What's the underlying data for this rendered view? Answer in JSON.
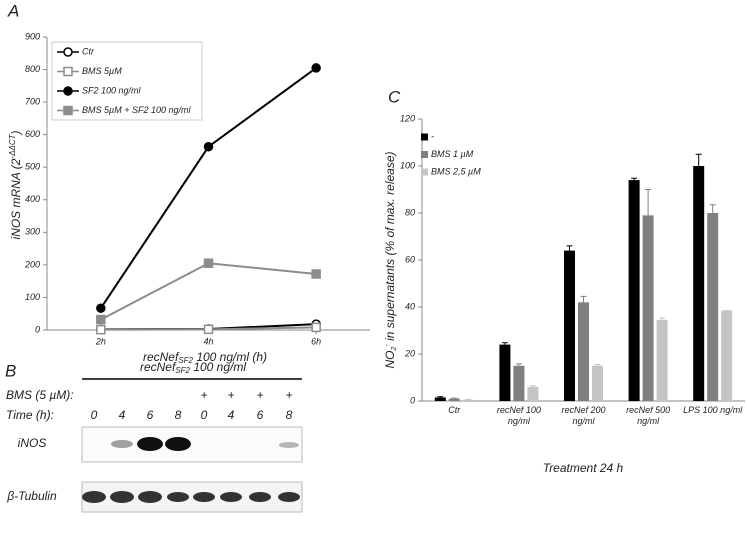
{
  "chart_data": [
    {
      "type": "line",
      "panel": "A",
      "xlabel_main": "recNef",
      "xlabel_sub": "SF2",
      "xlabel_end": " 100 ng/ml (h)",
      "ylabel_main": "iNOS mRNA (2",
      "ylabel_sup": "-ΔΔCT",
      "ylabel_end": ")",
      "categories": [
        "2h",
        "4h",
        "6h"
      ],
      "ylim": [
        0,
        900
      ],
      "yticks": [
        0,
        100,
        200,
        300,
        400,
        500,
        600,
        700,
        800,
        900
      ],
      "grid": false,
      "series": [
        {
          "name": "Ctr",
          "color": "#000000",
          "marker": "circle",
          "filled": false,
          "values": [
            2,
            3,
            18
          ]
        },
        {
          "name": "BMS 5µM",
          "color": "#8c8c8c",
          "marker": "square",
          "filled": false,
          "values": [
            1,
            2,
            8
          ]
        },
        {
          "name": "SF2 100 ng/ml",
          "color": "#000000",
          "marker": "circle",
          "filled": true,
          "values": [
            67,
            563,
            805
          ]
        },
        {
          "name": "BMS 5µM + SF2 100 ng/ml",
          "color": "#8c8c8c",
          "marker": "square",
          "filled": true,
          "values": [
            32,
            205,
            172
          ]
        }
      ]
    },
    {
      "type": "bar",
      "panel": "C",
      "xlabel": "Treatment 24 h",
      "ylabel_main": "NO",
      "ylabel_sub": "2",
      "ylabel_sup": "-",
      "ylabel_end": " in supernatants (% of max. release)",
      "categories": [
        "Ctr",
        "recNef 100 ng/ml",
        "recNef 200 ng/ml",
        "recNef 500 ng/ml",
        "LPS 100 ng/ml"
      ],
      "ylim": [
        0,
        120
      ],
      "yticks": [
        0,
        20,
        40,
        60,
        80,
        100,
        120
      ],
      "grid": false,
      "series": [
        {
          "name": "-",
          "color": "#000000",
          "values": [
            1.5,
            24,
            64,
            94,
            100
          ],
          "errors": [
            0.3,
            0.8,
            2,
            0.8,
            5
          ]
        },
        {
          "name": "BMS 1 µM",
          "color": "#808080",
          "values": [
            1,
            15,
            42,
            79,
            80
          ],
          "errors": [
            0.2,
            0.8,
            2.5,
            11,
            3.5
          ]
        },
        {
          "name": "BMS 2,5 µM",
          "color": "#c4c4c4",
          "values": [
            0.5,
            6,
            15,
            34.5,
            38.5
          ],
          "errors": [
            0.2,
            0.5,
            0.5,
            0.8,
            0
          ]
        }
      ]
    }
  ],
  "blot": {
    "panel": "B",
    "header_main": "recNef",
    "header_sub": "SF2",
    "header_end": " 100 ng/ml",
    "bms_label": "BMS (5 µM):",
    "bms_marks": [
      "+",
      "+",
      "+",
      "+"
    ],
    "time_label": "Time (h):",
    "times": [
      "0",
      "4",
      "6",
      "8",
      "0",
      "4",
      "6",
      "8"
    ],
    "rows": [
      "iNOS",
      "β-Tubulin"
    ]
  }
}
